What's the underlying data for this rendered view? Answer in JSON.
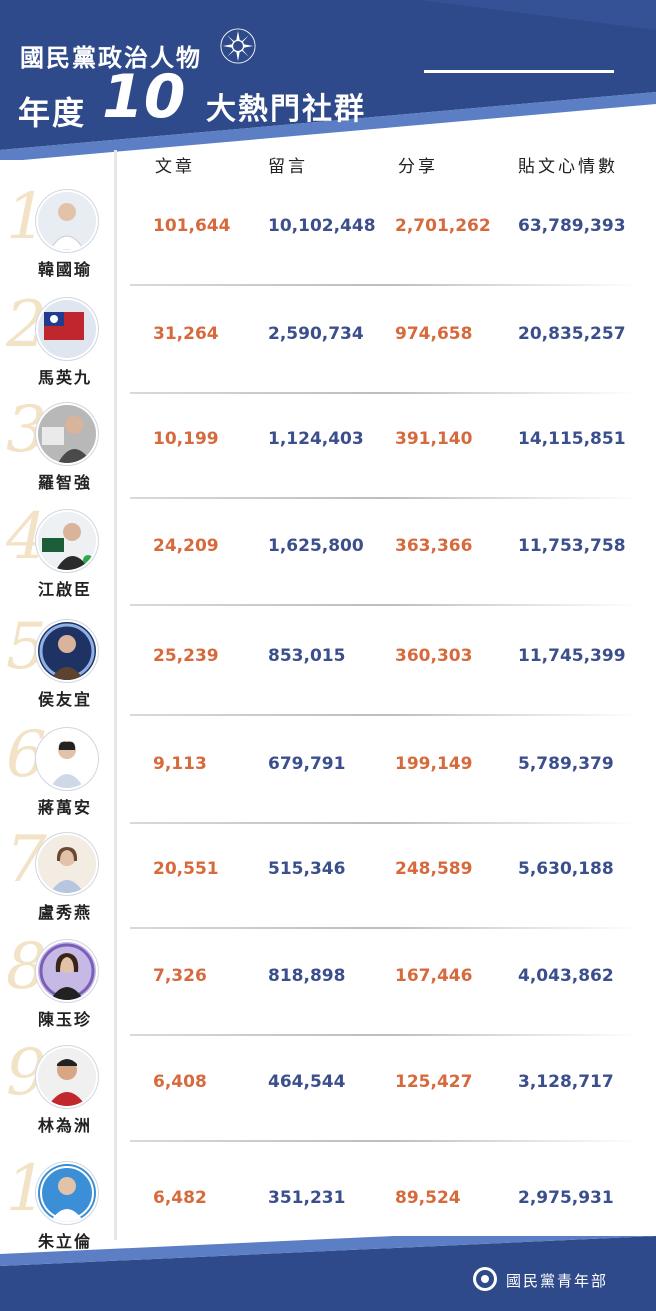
{
  "title": {
    "line1": "國民黨政治人物",
    "line2_prefix": "年度",
    "line2_number": "10",
    "line2_suffix": "大熱門社群"
  },
  "headers": {
    "posts": "文章",
    "comments": "留言",
    "shares": "分享",
    "reactions": "貼文心情數"
  },
  "rows": [
    {
      "rank": "1",
      "name": "韓國瑜",
      "posts": "101,644",
      "comments": "10,102,448",
      "shares": "2,701,262",
      "reactions": "63,789,393"
    },
    {
      "rank": "2",
      "name": "馬英九",
      "posts": "31,264",
      "comments": "2,590,734",
      "shares": "974,658",
      "reactions": "20,835,257"
    },
    {
      "rank": "3",
      "name": "羅智強",
      "posts": "10,199",
      "comments": "1,124,403",
      "shares": "391,140",
      "reactions": "14,115,851"
    },
    {
      "rank": "4",
      "name": "江啟臣",
      "posts": "24,209",
      "comments": "1,625,800",
      "shares": "363,366",
      "reactions": "11,753,758"
    },
    {
      "rank": "5",
      "name": "侯友宜",
      "posts": "25,239",
      "comments": "853,015",
      "shares": "360,303",
      "reactions": "11,745,399"
    },
    {
      "rank": "6",
      "name": "蔣萬安",
      "posts": "9,113",
      "comments": "679,791",
      "shares": "199,149",
      "reactions": "5,789,379"
    },
    {
      "rank": "7",
      "name": "盧秀燕",
      "posts": "20,551",
      "comments": "515,346",
      "shares": "248,589",
      "reactions": "5,630,188"
    },
    {
      "rank": "8",
      "name": "陳玉珍",
      "posts": "7,326",
      "comments": "818,898",
      "shares": "167,446",
      "reactions": "4,043,862"
    },
    {
      "rank": "9",
      "name": "林為洲",
      "posts": "6,408",
      "comments": "464,544",
      "shares": "125,427",
      "reactions": "3,128,717"
    },
    {
      "rank": "10",
      "name": "朱立倫",
      "posts": "6,482",
      "comments": "351,231",
      "shares": "89,524",
      "reactions": "2,975,931"
    }
  ],
  "footer": {
    "label": "國民黨青年部"
  },
  "colors": {
    "banner": "#2f4a8a",
    "banner_light": "#5b7ec4",
    "orange": "#d66a3c",
    "blue": "#3b4f8c"
  },
  "icons": {
    "emblem": "kmt-sun-emblem-icon",
    "footer": "kmt-youth-logo-icon"
  }
}
